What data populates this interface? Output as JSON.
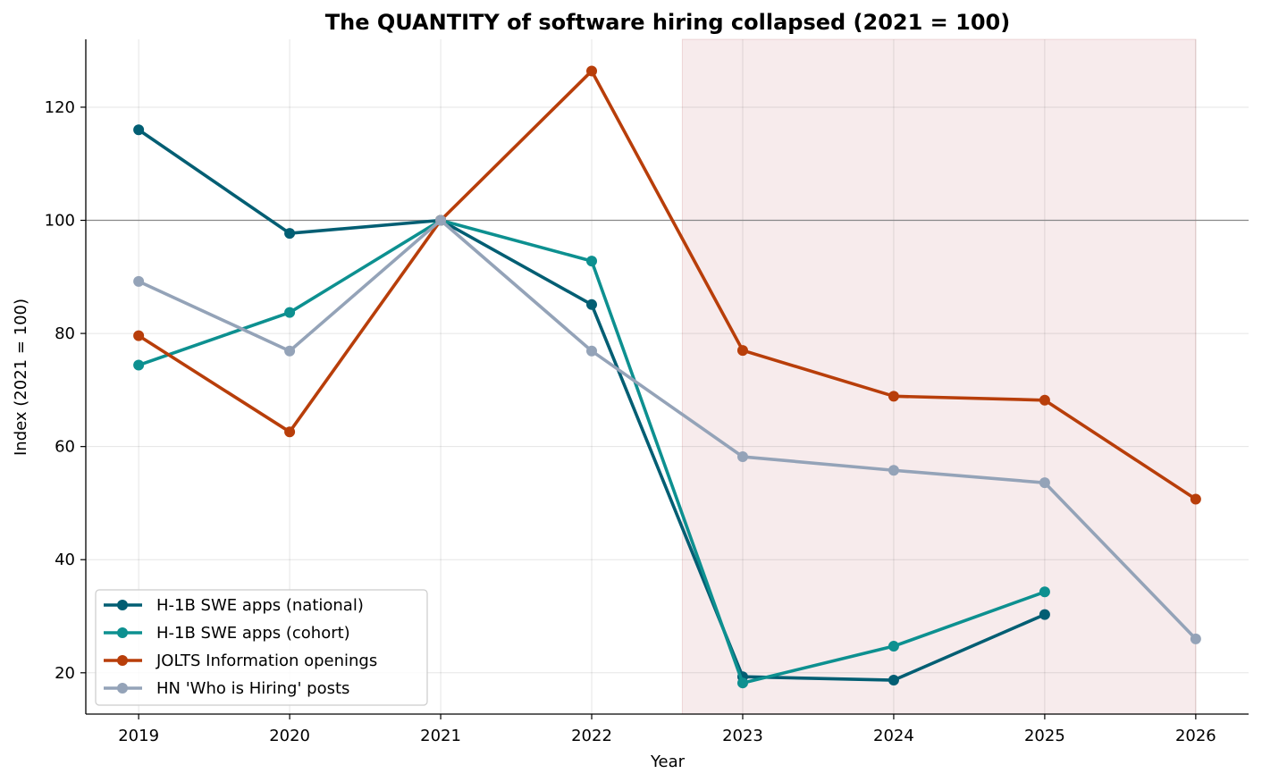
{
  "chart_data": {
    "type": "line",
    "title": "The QUANTITY of software hiring collapsed (2021 = 100)",
    "xlabel": "Year",
    "ylabel": "Index (2021 = 100)",
    "x_ticks": [
      "2019",
      "2020",
      "2021",
      "2022",
      "2023",
      "2024",
      "2025",
      "2026"
    ],
    "xlim": [
      2018.65,
      2026.35
    ],
    "ylim": [
      12.7,
      132.0
    ],
    "y_ticks": [
      20,
      40,
      60,
      80,
      100,
      120
    ],
    "grid": true,
    "reference_line": 100,
    "shaded_region": [
      2022.6,
      2026
    ],
    "legend_position": "lower-left",
    "series": [
      {
        "name": "H-1B SWE apps (national)",
        "color": "#025e73",
        "x": [
          2019,
          2020,
          2021,
          2022,
          2023,
          2024,
          2025
        ],
        "values": [
          116.0,
          97.7,
          100.0,
          85.1,
          19.3,
          18.7,
          30.3
        ]
      },
      {
        "name": "H-1B SWE apps (cohort)",
        "color": "#0d9090",
        "x": [
          2019,
          2020,
          2021,
          2022,
          2023,
          2024,
          2025
        ],
        "values": [
          74.4,
          83.7,
          100.0,
          92.8,
          18.2,
          24.7,
          34.3
        ]
      },
      {
        "name": "JOLTS Information openings",
        "color": "#b83e0a",
        "x": [
          2019,
          2020,
          2021,
          2022,
          2023,
          2024,
          2025,
          2026
        ],
        "values": [
          79.6,
          62.6,
          100.0,
          126.4,
          77.0,
          68.9,
          68.2,
          50.7
        ]
      },
      {
        "name": "HN 'Who is Hiring' posts",
        "color": "#94a3b8",
        "x": [
          2019,
          2020,
          2021,
          2022,
          2023,
          2024,
          2025,
          2026
        ],
        "values": [
          89.2,
          76.9,
          100.0,
          76.9,
          58.2,
          55.8,
          53.6,
          26.0
        ]
      }
    ]
  }
}
